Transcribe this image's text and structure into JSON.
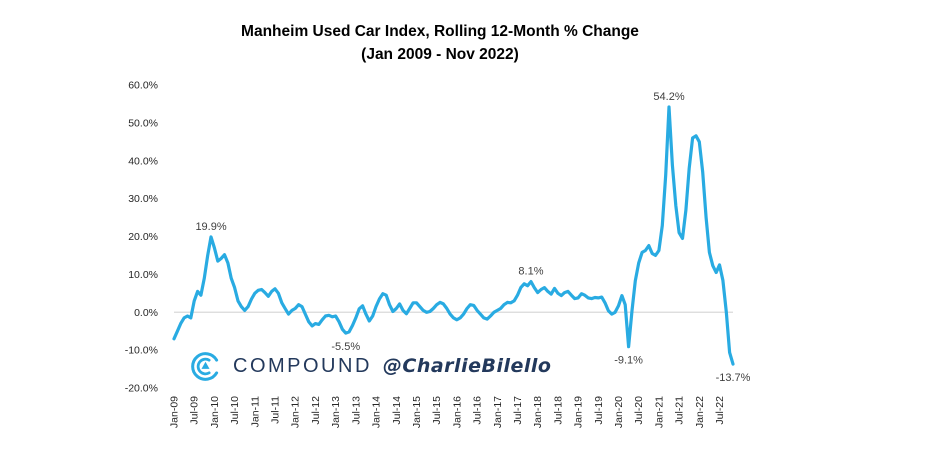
{
  "title": {
    "line1": "Manheim Used Car Index, Rolling 12-Month % Change",
    "line2": "(Jan 2009 - Nov 2022)"
  },
  "logo": {
    "brand": "COMPOUND",
    "handle": "@CharlieBilello"
  },
  "colors": {
    "line": "#29ABE2",
    "zero_gridline": "#D9D9D9",
    "axis_text": "#262626",
    "annotation_text": "#404040",
    "logo_navy": "#23395C",
    "logo_cyan": "#29ABE2"
  },
  "chart_data": {
    "type": "line",
    "title": "Manheim Used Car Index, Rolling 12-Month % Change (Jan 2009 - Nov 2022)",
    "x_start": "Jan-2009",
    "x_end": "Nov-2022",
    "ylim": [
      -20,
      60
    ],
    "grid": "zero-line-only",
    "legend": "none",
    "y_tick_labels": [
      "60.0%",
      "50.0%",
      "40.0%",
      "30.0%",
      "20.0%",
      "10.0%",
      "0.0%",
      "-10.0%",
      "-20.0%"
    ],
    "y_tick_values": [
      60,
      50,
      40,
      30,
      20,
      10,
      0,
      -10,
      -20
    ],
    "x_tick_labels": [
      "Jan-09",
      "Jul-09",
      "Jan-10",
      "Jul-10",
      "Jan-11",
      "Jul-11",
      "Jan-12",
      "Jul-12",
      "Jan-13",
      "Jul-13",
      "Jan-14",
      "Jul-14",
      "Jan-15",
      "Jul-15",
      "Jan-16",
      "Jul-16",
      "Jan-17",
      "Jul-17",
      "Jan-18",
      "Jul-18",
      "Jan-19",
      "Jul-19",
      "Jan-20",
      "Jul-20",
      "Jan-21",
      "Jul-21",
      "Jan-22",
      "Jul-22"
    ],
    "x_tick_month_step": 6,
    "values": [
      -7.0,
      -5.0,
      -3.0,
      -1.5,
      -1.0,
      -1.5,
      3.0,
      5.5,
      4.5,
      9.0,
      15.0,
      19.9,
      17.0,
      13.5,
      14.2,
      15.2,
      13.0,
      9.0,
      6.5,
      3.0,
      1.5,
      0.5,
      1.5,
      3.5,
      5.0,
      5.8,
      6.0,
      5.2,
      4.2,
      5.5,
      6.2,
      5.0,
      2.5,
      1.0,
      -0.5,
      0.5,
      1.0,
      2.0,
      1.5,
      -0.5,
      -2.5,
      -3.6,
      -3.0,
      -3.2,
      -2.0,
      -1.0,
      -0.8,
      -1.2,
      -1.0,
      -2.5,
      -4.5,
      -5.5,
      -5.2,
      -3.5,
      -1.5,
      0.9,
      1.7,
      -0.5,
      -2.3,
      -1.0,
      1.5,
      3.5,
      4.9,
      4.5,
      2.0,
      0.2,
      1.0,
      2.2,
      0.5,
      -0.4,
      1.0,
      2.5,
      2.5,
      1.5,
      0.5,
      0.0,
      0.2,
      1.0,
      2.0,
      2.6,
      2.2,
      1.0,
      -0.5,
      -1.5,
      -2.0,
      -1.5,
      -0.5,
      1.0,
      2.0,
      1.8,
      0.5,
      -0.5,
      -1.5,
      -1.8,
      -1.0,
      0.0,
      0.5,
      1.0,
      2.0,
      2.6,
      2.5,
      3.0,
      4.5,
      6.5,
      7.5,
      7.0,
      8.1,
      6.5,
      5.2,
      6.0,
      6.5,
      5.5,
      4.8,
      6.3,
      5.0,
      4.4,
      5.2,
      5.5,
      4.5,
      3.6,
      3.8,
      4.9,
      4.5,
      3.8,
      3.6,
      3.9,
      3.8,
      4.0,
      2.5,
      0.4,
      -0.5,
      0.0,
      1.7,
      4.4,
      2.0,
      -9.1,
      0.4,
      8.3,
      13.0,
      15.8,
      16.3,
      17.6,
      15.5,
      15.0,
      16.3,
      22.9,
      36.2,
      54.2,
      38.8,
      28.2,
      21.0,
      19.5,
      27.0,
      38.0,
      46.0,
      46.6,
      45.0,
      37.0,
      25.0,
      15.8,
      12.3,
      10.5,
      12.5,
      8.4,
      0.1,
      -10.6,
      -13.7
    ],
    "annotations": [
      {
        "label": "19.9%",
        "month_index": 11,
        "placement": "above"
      },
      {
        "label": "-5.5%",
        "month_index": 51,
        "placement": "below"
      },
      {
        "label": "8.1%",
        "month_index": 106,
        "placement": "above"
      },
      {
        "label": "-9.1%",
        "month_index": 135,
        "placement": "below"
      },
      {
        "label": "54.2%",
        "month_index": 147,
        "placement": "above"
      },
      {
        "label": "-13.7%",
        "month_index": 166,
        "placement": "below"
      }
    ]
  }
}
